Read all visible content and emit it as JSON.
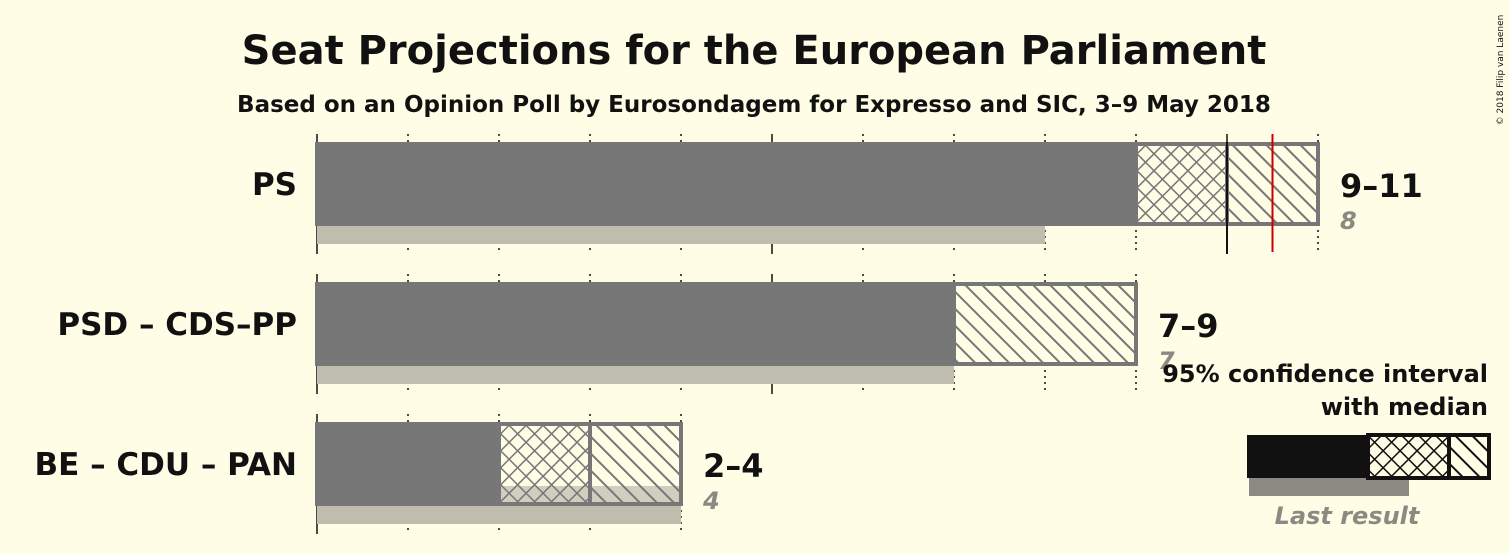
{
  "chart_data": {
    "type": "bar",
    "orientation": "horizontal",
    "title": "Seat Projections for the European Parliament",
    "subtitle": "Based on an Opinion Poll by Eurosondagem for Expresso and SIC, 3–9 May 2018",
    "copyright": "© 2018 Filip van Laenen",
    "majority_line": 10.5,
    "xlim": [
      0,
      11
    ],
    "grid": true,
    "parties": [
      {
        "name": "PS",
        "range_label": "9–11",
        "last_label": "8",
        "ci_low": 9,
        "median": 10,
        "ci_high": 11,
        "last_result": 8
      },
      {
        "name": "PSD – CDS–PP",
        "range_label": "7–9",
        "last_label": "7",
        "ci_low": 7,
        "median": 9,
        "ci_high": 9,
        "last_result": 7
      },
      {
        "name": "BE – CDU – PAN",
        "range_label": "2–4",
        "last_label": "4",
        "ci_low": 2,
        "median": 3,
        "ci_high": 4,
        "last_result": 4
      }
    ],
    "legend": {
      "line1": "95% confidence interval",
      "line2": "with median",
      "last_result": "Last result",
      "placement": "bottom-right"
    }
  },
  "colors": {
    "background": "#fffde5",
    "bar": "#777777",
    "last_result": "#bfbdad",
    "majority": "#cc0000",
    "legend_solid": "#111111",
    "legend_last": "#8a8a82"
  }
}
